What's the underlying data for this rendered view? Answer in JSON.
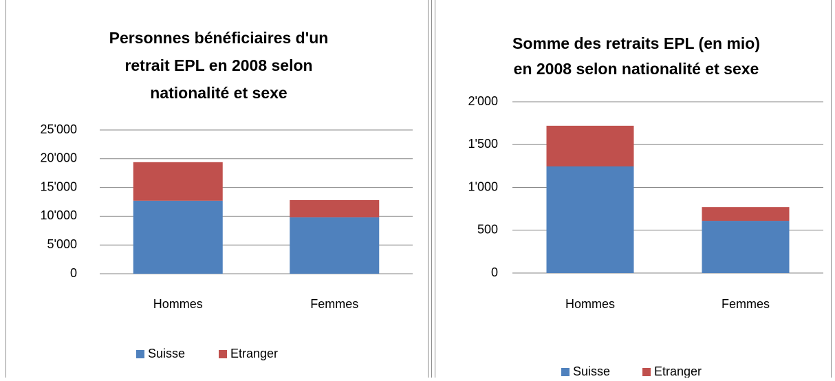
{
  "chart_data": [
    {
      "type": "bar",
      "stacked": true,
      "title": [
        "Personnes bénéficiaires d'un",
        "retrait EPL en 2008 selon",
        "nationalité et sexe"
      ],
      "categories": [
        "Hommes",
        "Femmes"
      ],
      "series": [
        {
          "name": "Suisse",
          "color": "#4f81bd",
          "values": [
            12700,
            9800
          ]
        },
        {
          "name": "Etranger",
          "color": "#c0504d",
          "values": [
            6700,
            3000
          ]
        }
      ],
      "ylim": [
        0,
        25000
      ],
      "yticks": [
        0,
        {
          "value": 5000,
          "label": "5'000"
        },
        {
          "value": 10000,
          "label": "10'000"
        },
        {
          "value": 15000,
          "label": "15'000"
        },
        {
          "value": 20000,
          "label": "20'000"
        },
        {
          "value": 25000,
          "label": "25'000"
        }
      ],
      "grid": true,
      "legend": "bottom"
    },
    {
      "type": "bar",
      "stacked": true,
      "title": [
        "Somme des retraits EPL (en mio)",
        "en 2008 selon nationalité  et sexe"
      ],
      "categories": [
        "Hommes",
        "Femmes"
      ],
      "series": [
        {
          "name": "Suisse",
          "color": "#4f81bd",
          "values": [
            1245,
            610
          ]
        },
        {
          "name": "Etranger",
          "color": "#c0504d",
          "values": [
            475,
            160
          ]
        }
      ],
      "ylim": [
        0,
        2000
      ],
      "yticks": [
        0,
        500,
        {
          "value": 1000,
          "label": "1'000"
        },
        {
          "value": 1500,
          "label": "1'500"
        },
        {
          "value": 2000,
          "label": "2'000"
        }
      ],
      "grid": true,
      "legend": "bottom"
    }
  ]
}
